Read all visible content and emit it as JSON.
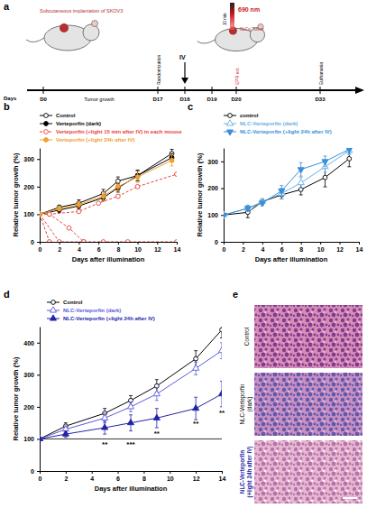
{
  "panel_labels": [
    "a",
    "b",
    "c",
    "d",
    "e"
  ],
  "schematic": {
    "implant": "Subcutaneous implantation of SKOV3",
    "days_label": "Days",
    "timeline": [
      "D0",
      "D17",
      "D18",
      "D19",
      "D20",
      "D33"
    ],
    "phase": "Tumor growth",
    "vertical": [
      "Randomization",
      "EPR ect.",
      "Euthanasia"
    ],
    "iv": "IV",
    "laser": "690 nm",
    "duration": "10 min",
    "target": "NLCs/ Tumor"
  },
  "chart_data": [
    {
      "type": "line",
      "xlabel": "Days after illumination",
      "ylabel": "Relative tumor growth (%)",
      "xlim": [
        0,
        14
      ],
      "xticks": [
        0,
        2,
        4,
        6,
        8,
        10,
        12,
        14
      ],
      "ylim": [
        0,
        340
      ],
      "yticks": [
        0,
        100,
        200,
        300
      ],
      "legend": "top",
      "series": [
        {
          "name": "Control",
          "color": "#000000",
          "marker": "open-circle",
          "line_style": "solid",
          "x": [
            0,
            2,
            4,
            6.5,
            8,
            10,
            13.5
          ],
          "values": [
            100,
            125,
            140,
            175,
            220,
            240,
            320
          ],
          "errors": [
            0,
            8,
            12,
            15,
            15,
            20,
            15
          ]
        },
        {
          "name": "Verteporfin (dark)",
          "color": "#000000",
          "marker": "circle",
          "line_style": "solid",
          "x": [
            0,
            2,
            4,
            6.5,
            8,
            10,
            13.5
          ],
          "values": [
            100,
            115,
            130,
            160,
            195,
            240,
            305
          ],
          "errors": [
            0,
            8,
            10,
            12,
            15,
            18,
            15
          ]
        },
        {
          "name": "Verteporfin (+light 15 min after IV) in each mouse",
          "color": "#e8413c",
          "marker": "open-circle",
          "line_style": "dashed",
          "individuals": [
            {
              "x": [
                0,
                1,
                4,
                6,
                8,
                10,
                14
              ],
              "values": [
                100,
                100,
                110,
                140,
                165,
                200,
                245
              ]
            },
            {
              "x": [
                0,
                1,
                3,
                4.5,
                6.5,
                9,
                14
              ],
              "values": [
                100,
                100,
                50,
                0,
                0,
                0,
                0
              ]
            },
            {
              "x": [
                0,
                2,
                4.5
              ],
              "values": [
                100,
                0,
                0
              ]
            },
            {
              "x": [
                0,
                1
              ],
              "values": [
                100,
                0
              ]
            }
          ]
        },
        {
          "name": "Verteporfin (+light 24h after IV)",
          "color": "#f0a030",
          "marker": "circle",
          "line_style": "solid",
          "x": [
            0,
            2,
            4,
            6.5,
            8,
            10,
            13.5
          ],
          "values": [
            100,
            120,
            135,
            165,
            200,
            235,
            295
          ],
          "errors": [
            0,
            8,
            10,
            15,
            15,
            20,
            20
          ]
        }
      ]
    },
    {
      "type": "line",
      "xlabel": "Days after illumination",
      "ylabel": "Relative tumor growth (%)",
      "xlim": [
        0,
        14
      ],
      "xticks": [
        0,
        2,
        4,
        6,
        8,
        10,
        12,
        14
      ],
      "ylim": [
        0,
        350
      ],
      "yticks": [
        0,
        100,
        200,
        300
      ],
      "legend": "top",
      "series": [
        {
          "name": "control",
          "color": "#000000",
          "marker": "open-circle",
          "line_style": "solid",
          "x": [
            0,
            2.5,
            4,
            6,
            8,
            10.5,
            13
          ],
          "values": [
            100,
            110,
            150,
            175,
            195,
            240,
            310
          ],
          "errors": [
            0,
            20,
            10,
            15,
            20,
            35,
            30
          ]
        },
        {
          "name": "NLC-Verteporfin (dark)",
          "color": "#6aaee0",
          "marker": "open-triangle",
          "line_style": "solid",
          "x": [
            0,
            2.5,
            4,
            6,
            8,
            10.5,
            13
          ],
          "values": [
            100,
            125,
            150,
            180,
            220,
            280,
            340
          ],
          "errors": [
            0,
            10,
            10,
            20,
            20,
            20,
            15
          ]
        },
        {
          "name": "NLC-Verteporfin (+light 24h after IV)",
          "color": "#3a8fd8",
          "marker": "triangle-down",
          "line_style": "solid",
          "x": [
            0,
            2.5,
            4,
            6,
            8,
            10.5,
            13
          ],
          "values": [
            100,
            125,
            145,
            190,
            270,
            300,
            345
          ],
          "errors": [
            0,
            10,
            10,
            20,
            25,
            20,
            15
          ]
        }
      ]
    },
    {
      "type": "line",
      "xlabel": "Days after illumination",
      "ylabel": "Relative tumor growth (%)",
      "xlim": [
        0,
        14
      ],
      "xticks": [
        0,
        2,
        4,
        6,
        8,
        10,
        12,
        14
      ],
      "ylim": [
        0,
        450
      ],
      "yticks": [
        0,
        100,
        200,
        300,
        400
      ],
      "legend": "top",
      "reference_line": 100,
      "annotations": [
        {
          "text": "**",
          "x": 5,
          "y": 75
        },
        {
          "text": "***",
          "x": 7,
          "y": 75
        },
        {
          "text": "**",
          "x": 9,
          "y": 110
        },
        {
          "text": "**",
          "x": 12,
          "y": 140
        },
        {
          "text": "**",
          "x": 14,
          "y": 175
        }
      ],
      "series": [
        {
          "name": "Control",
          "color": "#000000",
          "marker": "open-circle",
          "line_style": "solid",
          "x": [
            0,
            2,
            5,
            7,
            9,
            12,
            14
          ],
          "values": [
            100,
            140,
            180,
            220,
            265,
            350,
            440
          ],
          "errors": [
            0,
            10,
            15,
            15,
            20,
            25,
            25
          ]
        },
        {
          "name": "NLC-Verteporfin (dark)",
          "color": "#5a5ae0",
          "marker": "open-triangle",
          "line_style": "solid",
          "x": [
            0,
            2,
            5,
            7,
            9,
            12,
            14
          ],
          "values": [
            100,
            130,
            165,
            200,
            240,
            320,
            375
          ],
          "errors": [
            0,
            10,
            15,
            15,
            20,
            20,
            25
          ]
        },
        {
          "name": "NLC-Verteporfin (+light 24h after IV)",
          "color": "#2323a8",
          "marker": "triangle",
          "line_style": "solid",
          "x": [
            0,
            2,
            5,
            7,
            9,
            12,
            14
          ],
          "values": [
            100,
            115,
            135,
            150,
            165,
            195,
            240
          ],
          "errors": [
            0,
            10,
            20,
            25,
            30,
            35,
            40
          ]
        }
      ]
    }
  ],
  "histology": {
    "panels": [
      {
        "lines": [
          "Control"
        ],
        "color": "#000000"
      },
      {
        "lines": [
          "NLC-Verteporfin",
          "(dark)"
        ],
        "color": "#000000"
      },
      {
        "lines": [
          "NLC-Verteporfin",
          "(+light 24h after IV)"
        ],
        "color": "#2323a8"
      }
    ]
  }
}
